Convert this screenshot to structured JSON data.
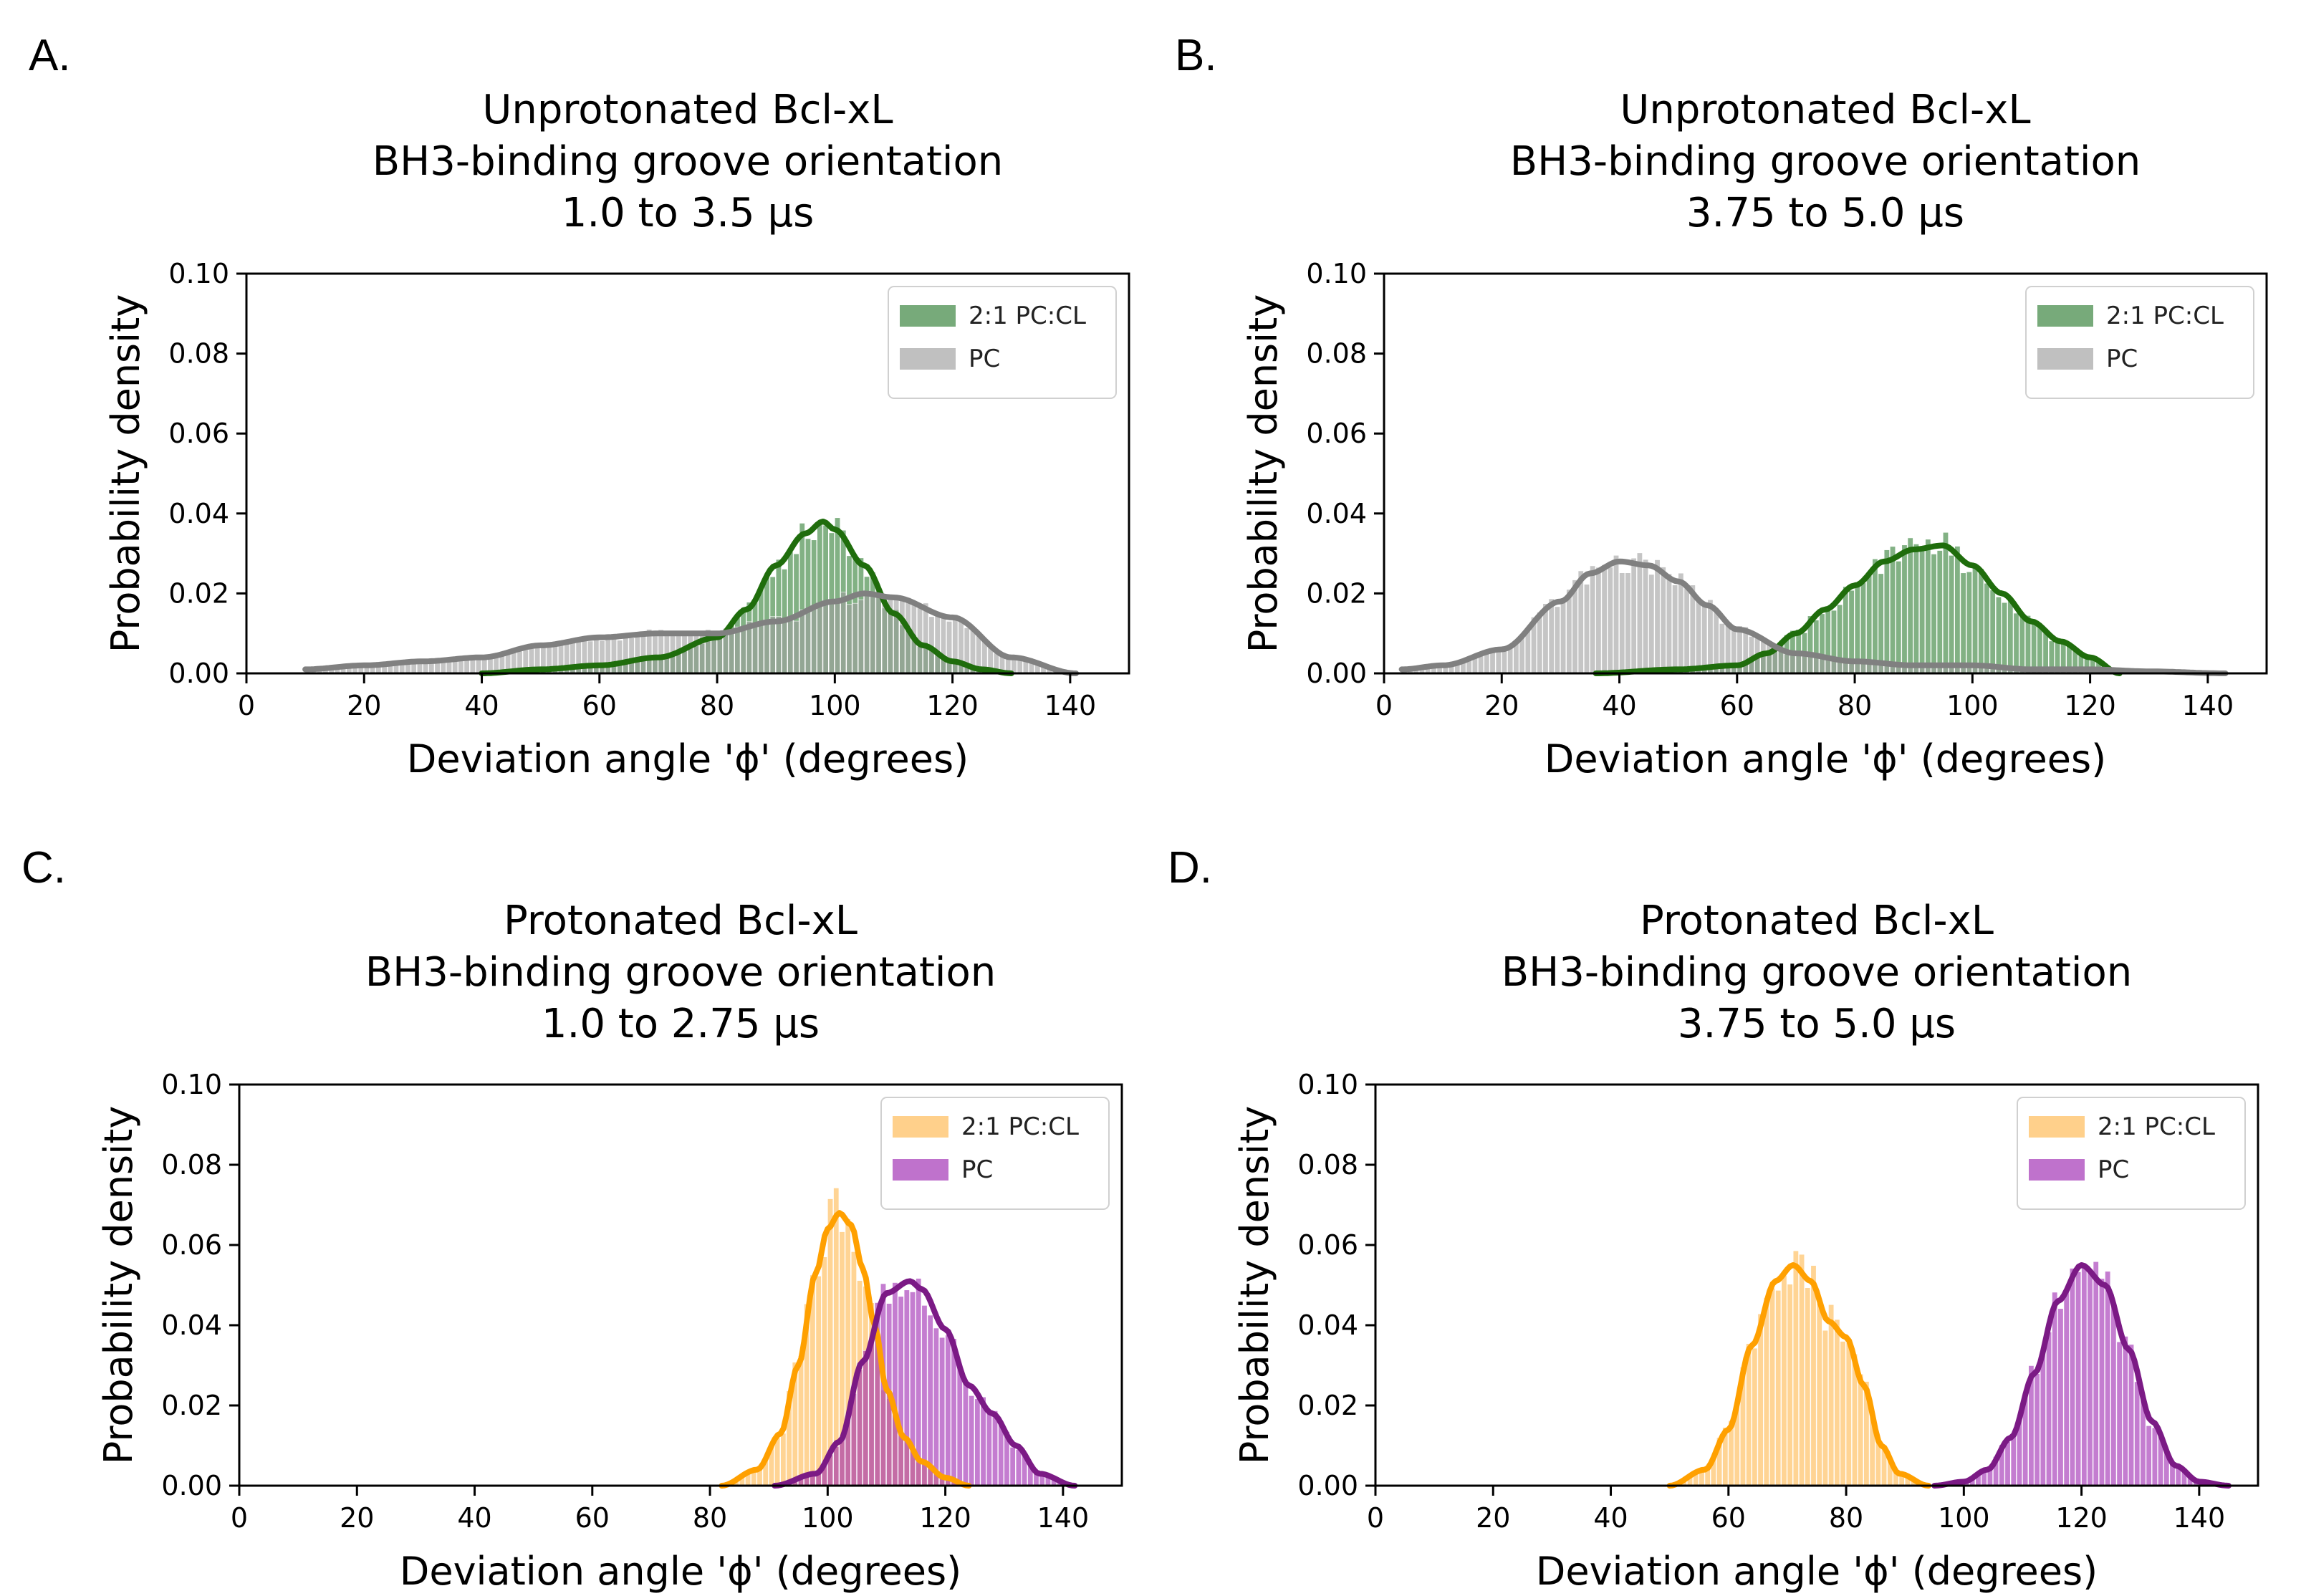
{
  "chart_data": [
    {
      "type": "histogram",
      "panel_label": "A.",
      "title": [
        "Unprotonated Bcl-xL",
        "BH3-binding groove orientation",
        "1.0 to 3.5 μs"
      ],
      "xlabel": "Deviation angle 'ϕ' (degrees)",
      "ylabel": "Probability density",
      "xlim": [
        0,
        150
      ],
      "ylim": [
        0,
        0.1
      ],
      "xticks": [
        "0",
        "20",
        "40",
        "60",
        "80",
        "100",
        "120",
        "140"
      ],
      "yticks": [
        "0.00",
        "0.02",
        "0.04",
        "0.06",
        "0.08",
        "0.10"
      ],
      "legend_position": "upper right",
      "series": [
        {
          "name": "2:1 PC:CL",
          "color": "#2e7d32",
          "line_color": "#1f6d0c",
          "range": [
            40,
            130
          ],
          "kde_x": [
            40,
            50,
            60,
            70,
            80,
            85,
            90,
            95,
            98,
            100,
            105,
            110,
            115,
            120,
            125,
            130
          ],
          "kde_y": [
            0.0,
            0.001,
            0.002,
            0.004,
            0.009,
            0.016,
            0.027,
            0.035,
            0.038,
            0.036,
            0.027,
            0.015,
            0.007,
            0.003,
            0.001,
            0.0
          ]
        },
        {
          "name": "PC",
          "color": "#9e9e9e",
          "line_color": "#808080",
          "range": [
            10,
            141
          ],
          "kde_x": [
            10,
            20,
            30,
            40,
            50,
            60,
            70,
            80,
            90,
            100,
            105,
            110,
            120,
            130,
            141
          ],
          "kde_y": [
            0.001,
            0.002,
            0.003,
            0.004,
            0.007,
            0.009,
            0.01,
            0.01,
            0.013,
            0.018,
            0.02,
            0.019,
            0.014,
            0.004,
            0.0
          ]
        }
      ]
    },
    {
      "type": "histogram",
      "panel_label": "B.",
      "title": [
        "Unprotonated Bcl-xL",
        "BH3-binding groove orientation",
        "3.75 to 5.0 μs"
      ],
      "xlabel": "Deviation angle 'ϕ' (degrees)",
      "ylabel": "Probability density",
      "xlim": [
        0,
        150
      ],
      "ylim": [
        0,
        0.1
      ],
      "xticks": [
        "0",
        "20",
        "40",
        "60",
        "80",
        "100",
        "120",
        "140"
      ],
      "yticks": [
        "0.00",
        "0.02",
        "0.04",
        "0.06",
        "0.08",
        "0.10"
      ],
      "legend_position": "upper right",
      "series": [
        {
          "name": "2:1 PC:CL",
          "color": "#2e7d32",
          "line_color": "#1f6d0c",
          "range": [
            36,
            125
          ],
          "kde_x": [
            36,
            50,
            60,
            65,
            70,
            75,
            80,
            85,
            90,
            95,
            100,
            105,
            110,
            115,
            120,
            125
          ],
          "kde_y": [
            0.0,
            0.001,
            0.002,
            0.005,
            0.01,
            0.016,
            0.022,
            0.028,
            0.031,
            0.032,
            0.027,
            0.02,
            0.013,
            0.008,
            0.004,
            0.0
          ]
        },
        {
          "name": "PC",
          "color": "#9e9e9e",
          "line_color": "#808080",
          "range": [
            3,
            143
          ],
          "kde_x": [
            3,
            10,
            20,
            30,
            35,
            40,
            45,
            50,
            55,
            60,
            70,
            80,
            90,
            100,
            110,
            120,
            130,
            143
          ],
          "kde_y": [
            0.001,
            0.002,
            0.006,
            0.018,
            0.025,
            0.028,
            0.027,
            0.023,
            0.017,
            0.011,
            0.005,
            0.003,
            0.002,
            0.002,
            0.001,
            0.001,
            0.0005,
            0.0
          ]
        }
      ]
    },
    {
      "type": "histogram",
      "panel_label": "C.",
      "title": [
        "Protonated Bcl-xL",
        "BH3-binding groove orientation",
        "1.0 to 2.75 μs"
      ],
      "xlabel": "Deviation angle 'ϕ' (degrees)",
      "ylabel": "Probability density",
      "xlim": [
        0,
        150
      ],
      "ylim": [
        0,
        0.1
      ],
      "xticks": [
        "0",
        "20",
        "40",
        "60",
        "80",
        "100",
        "120",
        "140"
      ],
      "yticks": [
        "0.00",
        "0.02",
        "0.04",
        "0.06",
        "0.08",
        "0.10"
      ],
      "legend_position": "upper right",
      "series": [
        {
          "name": "2:1 PC:CL",
          "color": "#ffb74d",
          "line_color": "#ffa000",
          "range": [
            82,
            124
          ],
          "kde_x": [
            82,
            88,
            92,
            95,
            98,
            100,
            102,
            104,
            106,
            108,
            110,
            113,
            116,
            120,
            124
          ],
          "kde_y": [
            0.0,
            0.004,
            0.013,
            0.03,
            0.053,
            0.064,
            0.068,
            0.065,
            0.054,
            0.04,
            0.024,
            0.012,
            0.006,
            0.002,
            0.0
          ]
        },
        {
          "name": "PC",
          "color": "#9c27b0",
          "line_color": "#7b1a85",
          "range": [
            91,
            142
          ],
          "kde_x": [
            91,
            98,
            102,
            106,
            110,
            114,
            116,
            120,
            124,
            128,
            132,
            136,
            142
          ],
          "kde_y": [
            0.0,
            0.003,
            0.011,
            0.031,
            0.048,
            0.051,
            0.049,
            0.039,
            0.025,
            0.018,
            0.01,
            0.003,
            0.0
          ]
        }
      ]
    },
    {
      "type": "histogram",
      "panel_label": "D.",
      "title": [
        "Protonated Bcl-xL",
        "BH3-binding groove orientation",
        "3.75 to 5.0 μs"
      ],
      "xlabel": "Deviation angle 'ϕ' (degrees)",
      "ylabel": "Probability density",
      "xlim": [
        0,
        150
      ],
      "ylim": [
        0,
        0.1
      ],
      "xticks": [
        "0",
        "20",
        "40",
        "60",
        "80",
        "100",
        "120",
        "140"
      ],
      "yticks": [
        "0.00",
        "0.02",
        "0.04",
        "0.06",
        "0.08",
        "0.10"
      ],
      "legend_position": "upper right",
      "series": [
        {
          "name": "2:1 PC:CL",
          "color": "#ffb74d",
          "line_color": "#ffa000",
          "range": [
            50,
            94
          ],
          "kde_x": [
            50,
            56,
            60,
            64,
            68,
            71,
            74,
            77,
            80,
            83,
            86,
            89,
            94
          ],
          "kde_y": [
            0.0,
            0.004,
            0.014,
            0.035,
            0.051,
            0.055,
            0.051,
            0.041,
            0.037,
            0.025,
            0.01,
            0.003,
            0.0
          ]
        },
        {
          "name": "PC",
          "color": "#9c27b0",
          "line_color": "#7b1a85",
          "range": [
            95,
            145
          ],
          "kde_x": [
            95,
            100,
            104,
            108,
            112,
            116,
            120,
            124,
            128,
            132,
            136,
            140,
            145
          ],
          "kde_y": [
            0.0,
            0.001,
            0.004,
            0.012,
            0.028,
            0.046,
            0.055,
            0.05,
            0.034,
            0.016,
            0.005,
            0.001,
            0.0
          ]
        }
      ]
    }
  ]
}
